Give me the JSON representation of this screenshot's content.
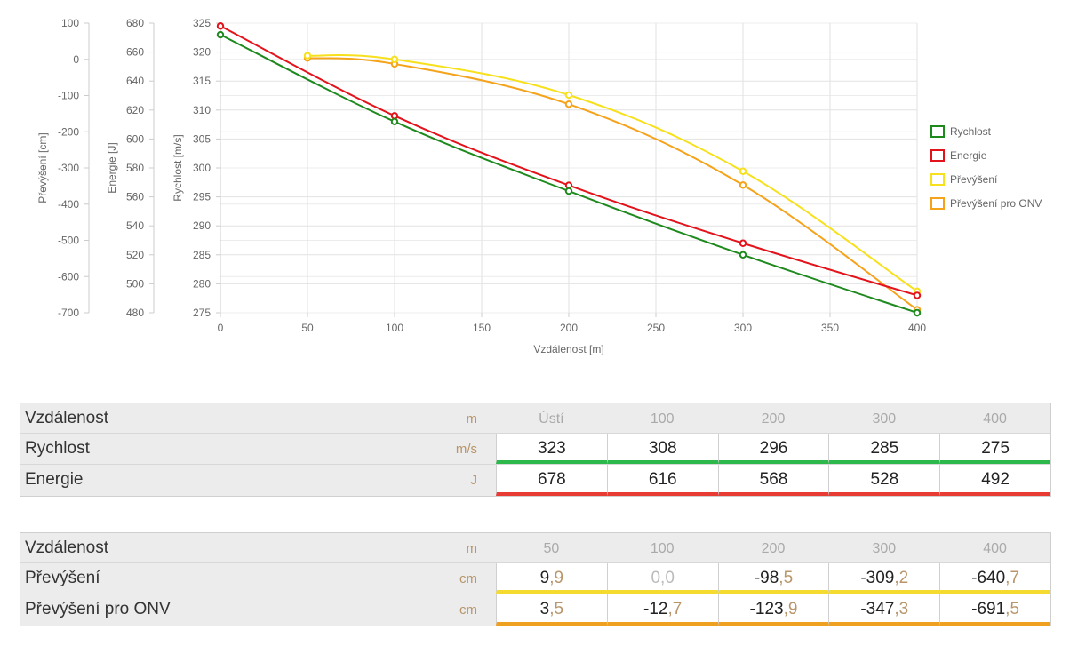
{
  "chart_data": {
    "type": "line",
    "xlabel": "Vzdálenost [m]",
    "x_ticks": [
      0,
      50,
      100,
      150,
      200,
      250,
      300,
      350,
      400
    ],
    "xlim": [
      0,
      400
    ],
    "grid": true,
    "legend_placement": "right",
    "axes": [
      {
        "id": "prevyseni",
        "label": "Převýšení [cm]",
        "ticks": [
          100,
          0,
          -100,
          -200,
          -300,
          -400,
          -500,
          -600,
          -700
        ],
        "ylim": [
          -700,
          100
        ]
      },
      {
        "id": "energie",
        "label": "Energie [J]",
        "ticks": [
          680,
          660,
          640,
          620,
          600,
          580,
          560,
          540,
          520,
          500,
          480
        ],
        "ylim": [
          480,
          680
        ]
      },
      {
        "id": "rychlost",
        "label": "Rychlost [m/s]",
        "ticks": [
          325,
          320,
          315,
          310,
          305,
          300,
          295,
          290,
          285,
          280,
          275
        ],
        "ylim": [
          275,
          325
        ]
      }
    ],
    "series": [
      {
        "name": "Rychlost",
        "axis": "rychlost",
        "color": "#1e8a1e",
        "x": [
          0,
          100,
          200,
          300,
          400
        ],
        "values": [
          323,
          308,
          296,
          285,
          275
        ]
      },
      {
        "name": "Energie",
        "axis": "energie",
        "color": "#e3131b",
        "x": [
          0,
          100,
          200,
          300,
          400
        ],
        "values": [
          678,
          616,
          568,
          528,
          492
        ]
      },
      {
        "name": "Převýšení",
        "axis": "prevyseni",
        "color": "#f7e01c",
        "x": [
          50,
          100,
          200,
          300,
          400
        ],
        "values": [
          9.9,
          0.0,
          -98.5,
          -309.2,
          -640.7
        ]
      },
      {
        "name": "Převýšení pro ONV",
        "axis": "prevyseni",
        "color": "#f5a31a",
        "x": [
          50,
          100,
          200,
          300,
          400
        ],
        "values": [
          3.5,
          -12.7,
          -123.9,
          -347.3,
          -691.5
        ]
      }
    ]
  },
  "table1": {
    "head": {
      "label": "Vzdálenost",
      "unit": "m",
      "cols": [
        "Ústí",
        "100",
        "200",
        "300",
        "400"
      ]
    },
    "rows": [
      {
        "label": "Rychlost",
        "unit": "m/s",
        "values": [
          "323",
          "308",
          "296",
          "285",
          "275"
        ]
      },
      {
        "label": "Energie",
        "unit": "J",
        "values": [
          "678",
          "616",
          "568",
          "528",
          "492"
        ]
      }
    ]
  },
  "table2": {
    "head": {
      "label": "Vzdálenost",
      "unit": "m",
      "cols": [
        "50",
        "100",
        "200",
        "300",
        "400"
      ]
    },
    "rows": [
      {
        "label": "Převýšení",
        "unit": "cm",
        "values": [
          [
            "9",
            ",9"
          ],
          [
            "0",
            ",0"
          ],
          [
            "-98",
            ",5"
          ],
          [
            "-309",
            ",2"
          ],
          [
            "-640",
            ",7"
          ]
        ]
      },
      {
        "label": "Převýšení pro ONV",
        "unit": "cm",
        "values": [
          [
            "3",
            ",5"
          ],
          [
            "-12",
            ",7"
          ],
          [
            "-123",
            ",9"
          ],
          [
            "-347",
            ",3"
          ],
          [
            "-691",
            ",5"
          ]
        ]
      }
    ]
  }
}
